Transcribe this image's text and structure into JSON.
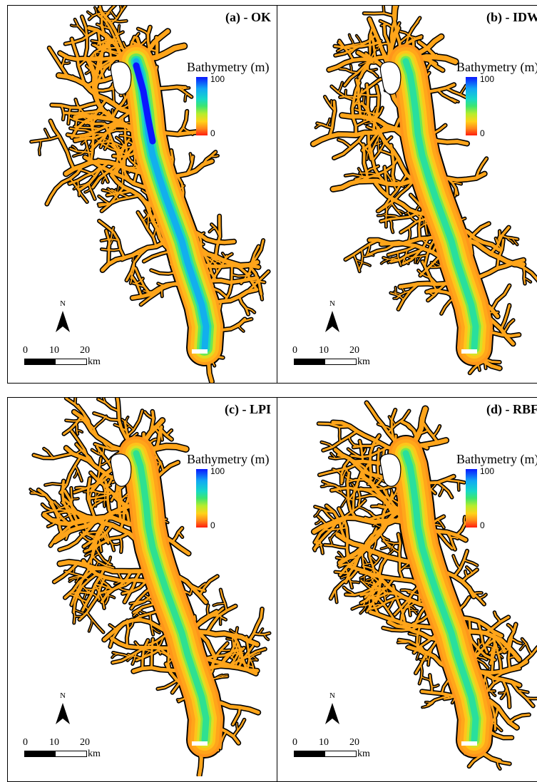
{
  "panels": [
    {
      "id": "a",
      "title": "(a) - OK",
      "variant": "ok"
    },
    {
      "id": "b",
      "title": "(b) - IDW",
      "variant": "idw"
    },
    {
      "id": "c",
      "title": "(c) - LPI",
      "variant": "lpi"
    },
    {
      "id": "d",
      "title": "(d) - RBF",
      "variant": "rbf"
    }
  ],
  "legend": {
    "title": "Bathymetry (m)",
    "max_label": "100",
    "min_label": "0"
  },
  "north_arrow": {
    "label": "N"
  },
  "scale_bar": {
    "ticks": [
      "0",
      "10",
      "20"
    ],
    "unit": "km"
  },
  "colors": {
    "deep": "#0a17ff",
    "cyan": "#11a7f4",
    "green": "#3ee56f",
    "yellow": "#ffd21a",
    "orange": "#ffa51a",
    "shallow": "#ff1d10",
    "land_edge": "#000000"
  }
}
